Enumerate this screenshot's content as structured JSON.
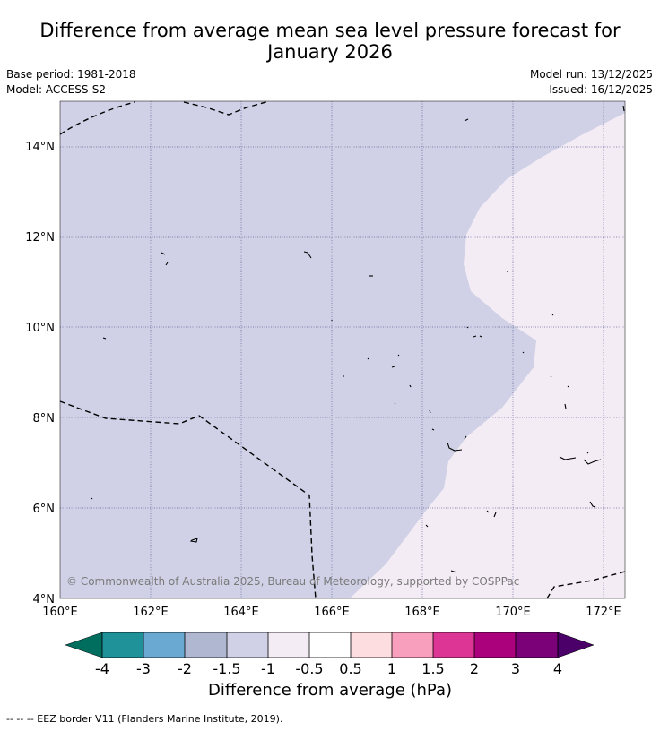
{
  "header": {
    "title_line1": "Difference from average mean sea level pressure forecast for",
    "title_line2": "January 2026",
    "base_period": "Base period: 1981-2018",
    "model": "Model: ACCESS-S2",
    "model_run": "Model run: 13/12/2025",
    "issued": "Issued: 16/12/2025"
  },
  "map": {
    "lat_labels": [
      "14°N",
      "12°N",
      "10°N",
      "8°N",
      "6°N",
      "4°N"
    ],
    "lon_labels": [
      "160°E",
      "162°E",
      "164°E",
      "166°E",
      "168°E",
      "170°E",
      "172°E"
    ],
    "copyright": "© Commonwealth of Australia 2025, Bureau of Meteorology, supported by COSPPac",
    "fill_colors": {
      "negative_band": "#d0d1e6",
      "neutral_band": "#f4ecf5"
    }
  },
  "colorbar": {
    "title": "Difference from average (hPa)",
    "tick_labels": [
      "-4",
      "-3",
      "-2",
      "-1.5",
      "-1",
      "-0.5",
      "0.5",
      "1",
      "1.5",
      "2",
      "3",
      "4"
    ],
    "colors": [
      "#006e5e",
      "#1f9198",
      "#6aaad2",
      "#b0b7d0",
      "#d0d1e6",
      "#f4ecf5",
      "#ffffff",
      "#fddde0",
      "#f99fbe",
      "#dd3596",
      "#ac017d",
      "#7a0177",
      "#4a0068"
    ]
  },
  "footer": {
    "legend": "--  --  -- EEZ border V11 (Flanders Marine Institute, 2019)."
  }
}
